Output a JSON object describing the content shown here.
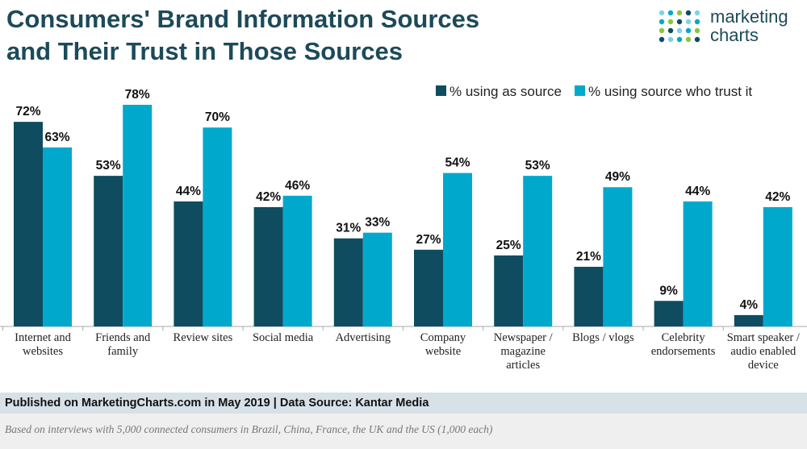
{
  "chart_data": {
    "type": "bar",
    "title": "Consumers' Brand Information Sources and Their Trust in Those Sources",
    "logo": [
      "marketing",
      "charts"
    ],
    "categories": [
      "Internet and websites",
      "Friends and family",
      "Review sites",
      "Social media",
      "Advertising",
      "Company website",
      "Newspaper / magazine articles",
      "Blogs / vlogs",
      "Celebrity endorsements",
      "Smart speaker / audio enabled device"
    ],
    "series": [
      {
        "name": "% using as source",
        "color": "#0f4c60",
        "values": [
          72,
          53,
          44,
          42,
          31,
          27,
          25,
          21,
          9,
          4
        ],
        "value_labels": [
          "72%",
          "53%",
          "44%",
          "42%",
          "31%",
          "27%",
          "25%",
          "21%",
          "9%",
          "4%"
        ]
      },
      {
        "name": "% using source who trust it",
        "color": "#00a9cc",
        "values": [
          63,
          78,
          70,
          46,
          33,
          54,
          53,
          49,
          44,
          42
        ],
        "value_labels": [
          "63%",
          "78%",
          "70%",
          "46%",
          "33%",
          "54%",
          "53%",
          "49%",
          "44%",
          "42%"
        ]
      }
    ],
    "legend": "top-right",
    "source": "Published on MarketingCharts.com in May 2019 | Data Source: Kantar Media",
    "note": "Based on interviews with 5,000 connected consumers in Brazil, China, France, the UK and the US (1,000 each)"
  }
}
